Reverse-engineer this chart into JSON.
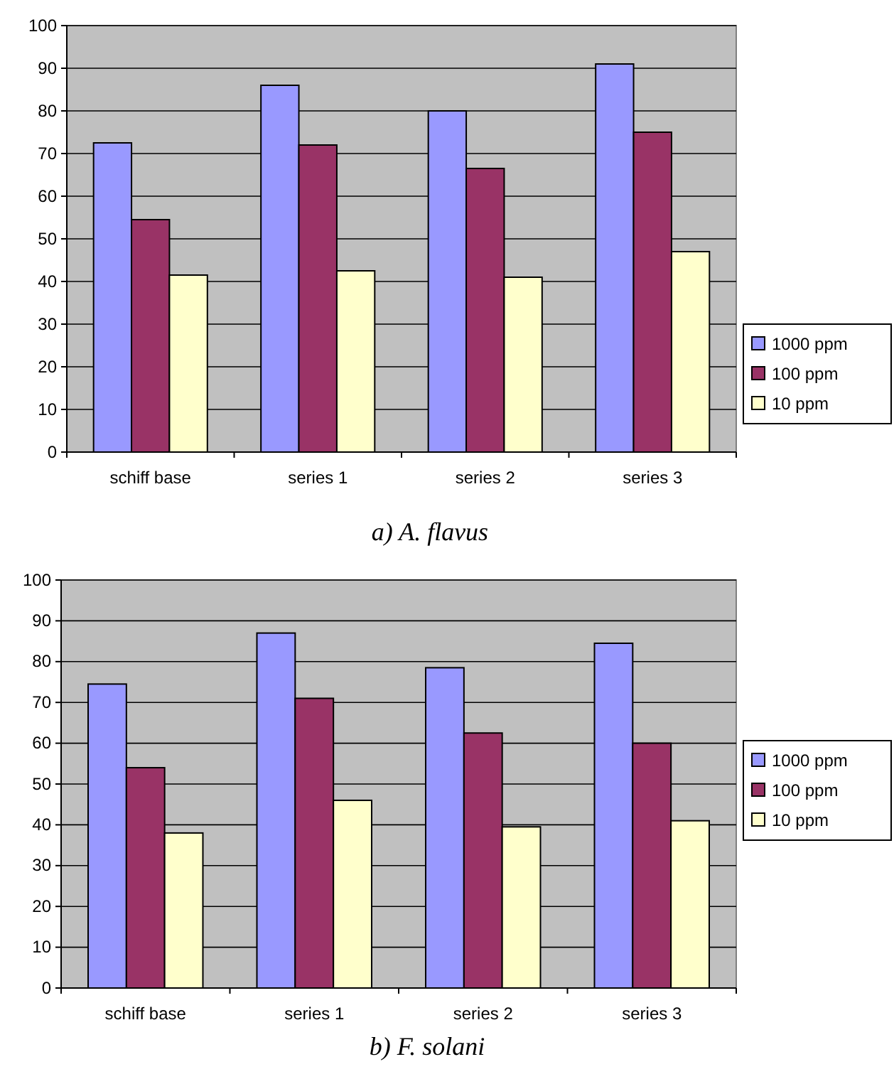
{
  "chart_data": [
    {
      "type": "bar",
      "title": "a) A. flavus",
      "categories": [
        "schiff base",
        "series 1",
        "series 2",
        "series 3"
      ],
      "series": [
        {
          "name": "1000 ppm",
          "color": "#9999ff",
          "values": [
            72.5,
            86,
            80,
            91
          ]
        },
        {
          "name": "100 ppm",
          "color": "#993366",
          "values": [
            54.5,
            72,
            66.5,
            75
          ]
        },
        {
          "name": "10 ppm",
          "color": "#ffffcc",
          "values": [
            41.5,
            42.5,
            41,
            47
          ]
        }
      ],
      "ylim": [
        0,
        100
      ],
      "yticks": [
        0,
        10,
        20,
        30,
        40,
        50,
        60,
        70,
        80,
        90,
        100
      ],
      "grid": "y",
      "legend": "right"
    },
    {
      "type": "bar",
      "title": "b) F. solani",
      "categories": [
        "schiff base",
        "series 1",
        "series 2",
        "series 3"
      ],
      "series": [
        {
          "name": "1000 ppm",
          "color": "#9999ff",
          "values": [
            74.5,
            87,
            78.5,
            84.5
          ]
        },
        {
          "name": "100 ppm",
          "color": "#993366",
          "values": [
            54,
            71,
            62.5,
            60
          ]
        },
        {
          "name": "10 ppm",
          "color": "#ffffcc",
          "values": [
            38,
            46,
            39.5,
            41
          ]
        }
      ],
      "ylim": [
        0,
        100
      ],
      "yticks": [
        0,
        10,
        20,
        30,
        40,
        50,
        60,
        70,
        80,
        90,
        100
      ],
      "grid": "y",
      "legend": "right"
    }
  ]
}
